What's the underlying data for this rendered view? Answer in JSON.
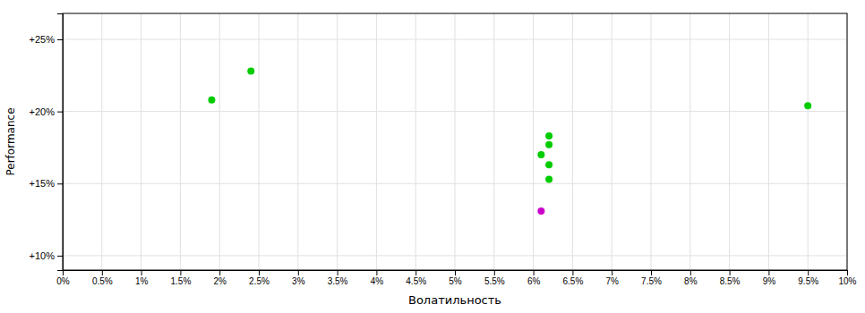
{
  "chart_data": {
    "type": "scatter",
    "xlabel": "Волатильность",
    "ylabel": "Performance",
    "series": [
      {
        "color": "#00cc00",
        "x": [
          0.019,
          0.024,
          0.061,
          0.062,
          0.062,
          0.062,
          0.062,
          0.095
        ],
        "values": [
          0.208,
          0.228,
          0.17,
          0.183,
          0.177,
          0.163,
          0.153,
          0.204
        ]
      },
      {
        "color": "#cc00cc",
        "x": [
          0.061
        ],
        "values": [
          0.131
        ]
      }
    ],
    "xlim": [
      0.0,
      0.1
    ],
    "ylim": [
      0.09,
      0.268
    ],
    "xticks": [
      {
        "value": 0.0,
        "label": "0%"
      },
      {
        "value": 0.005,
        "label": "0.5%"
      },
      {
        "value": 0.01,
        "label": "1%"
      },
      {
        "value": 0.015,
        "label": "1.5%"
      },
      {
        "value": 0.02,
        "label": "2%"
      },
      {
        "value": 0.025,
        "label": "2.5%"
      },
      {
        "value": 0.03,
        "label": "3%"
      },
      {
        "value": 0.035,
        "label": "3.5%"
      },
      {
        "value": 0.04,
        "label": "4%"
      },
      {
        "value": 0.045,
        "label": "4.5%"
      },
      {
        "value": 0.05,
        "label": "5%"
      },
      {
        "value": 0.055,
        "label": "5.5%"
      },
      {
        "value": 0.06,
        "label": "6%"
      },
      {
        "value": 0.065,
        "label": "6.5%"
      },
      {
        "value": 0.07,
        "label": "7%"
      },
      {
        "value": 0.075,
        "label": "7.5%"
      },
      {
        "value": 0.08,
        "label": "8%"
      },
      {
        "value": 0.085,
        "label": "8.5%"
      },
      {
        "value": 0.09,
        "label": "9%"
      },
      {
        "value": 0.095,
        "label": "9.5%"
      },
      {
        "value": 0.1,
        "label": "10%"
      }
    ],
    "yticks": [
      {
        "value": 0.1,
        "label": "+10%"
      },
      {
        "value": 0.15,
        "label": "+15%"
      },
      {
        "value": 0.2,
        "label": "+20%"
      },
      {
        "value": 0.25,
        "label": "+25%"
      }
    ],
    "grid": true
  }
}
